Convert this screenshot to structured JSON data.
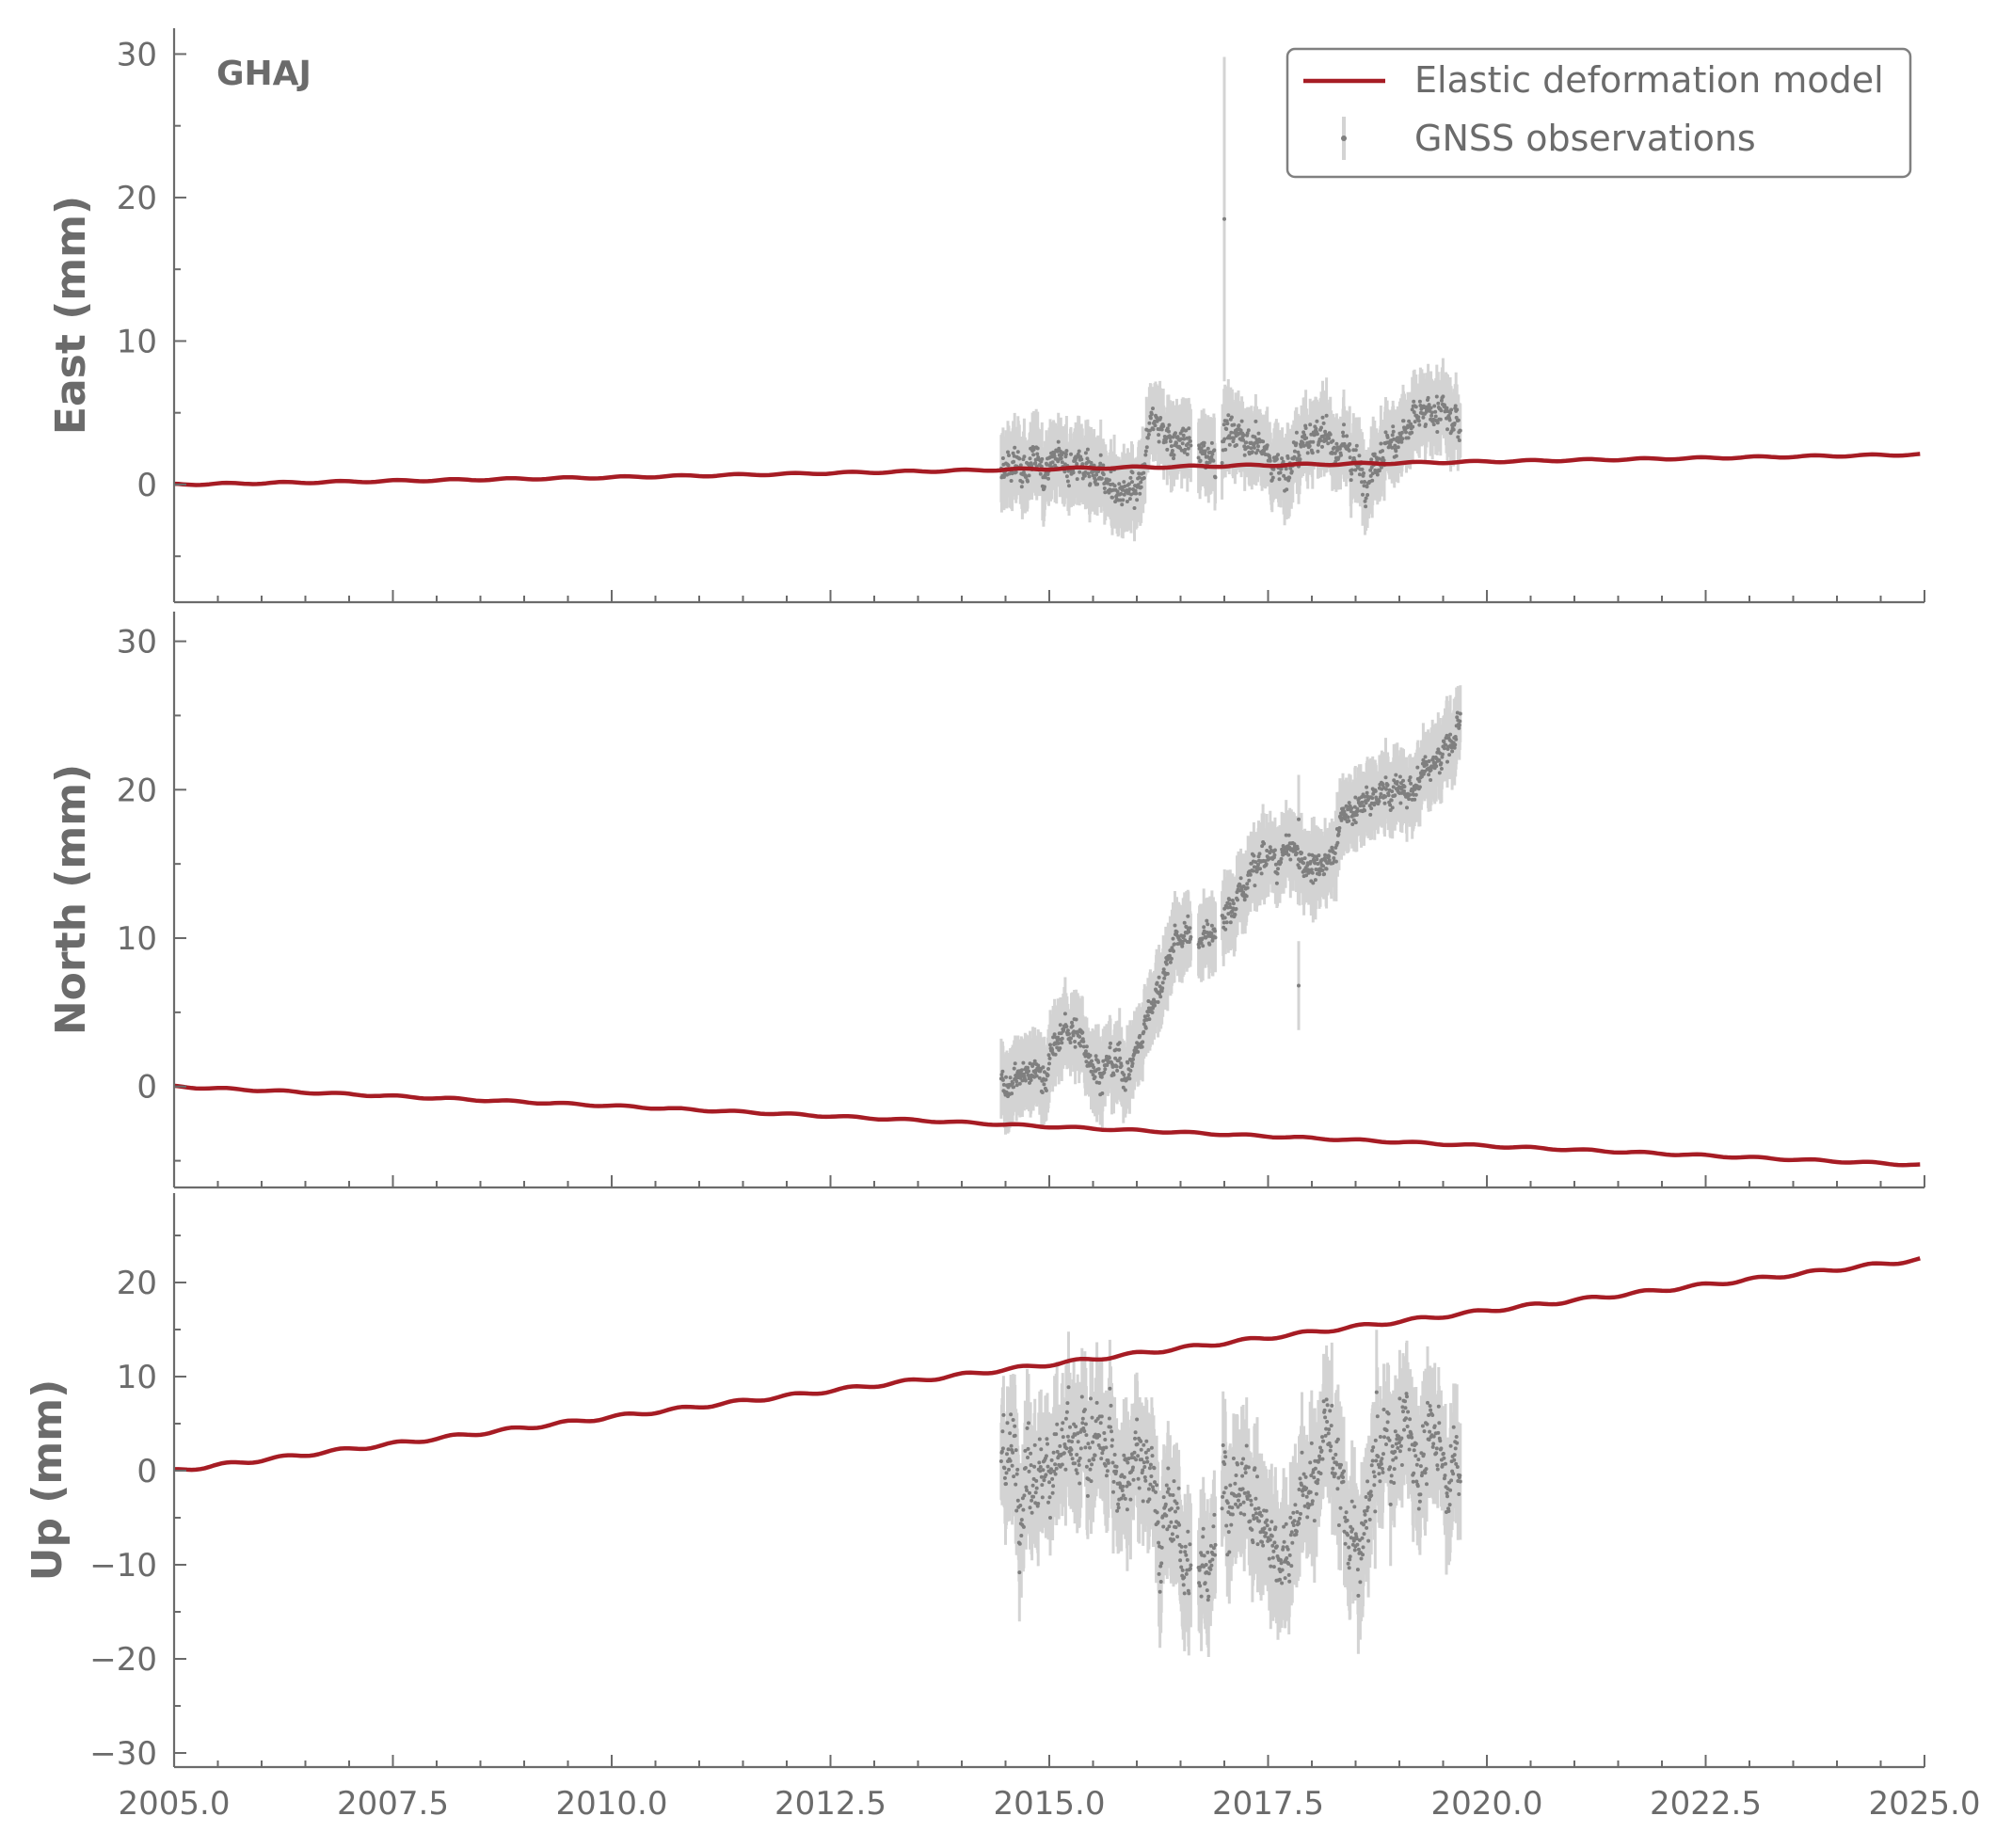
{
  "chart_data": {
    "type": "line",
    "station": "GHAJ",
    "xlim": [
      2005.0,
      2025.0
    ],
    "x_ticks": [
      "2005.0",
      "2007.5",
      "2010.0",
      "2012.5",
      "2015.0",
      "2017.5",
      "2020.0",
      "2022.5",
      "2025.0"
    ],
    "x_tick_values": [
      2005.0,
      2007.5,
      2010.0,
      2012.5,
      2015.0,
      2017.5,
      2020.0,
      2022.5,
      2025.0
    ],
    "legend": {
      "placement": "top-right",
      "model_label": "Elastic deformation model",
      "obs_label": "GNSS observations"
    },
    "colors": {
      "model": "#a61c24",
      "obs_point": "#7f7f7f",
      "obs_error": "#d3d3d3",
      "axis": "#6b6b6b"
    },
    "observation_span": [
      2014.45,
      2019.7
    ],
    "panels": [
      {
        "ylabel": "East (mm)",
        "ylim": [
          -8.2,
          31.8
        ],
        "y_ticks": [
          0,
          10,
          20,
          30
        ],
        "y_tick_labels": [
          "0",
          "10",
          "20",
          "30"
        ],
        "model": {
          "x": [
            2005.0,
            2010.0,
            2015.0,
            2020.0,
            2025.0
          ],
          "y": [
            0.0,
            0.5,
            1.1,
            1.6,
            2.1
          ]
        },
        "obs_trend": {
          "x": [
            2014.45,
            2014.8,
            2015.2,
            2015.6,
            2016.0,
            2016.2,
            2016.5,
            2016.8,
            2017.0,
            2017.4,
            2017.7,
            2018.0,
            2018.3,
            2018.6,
            2018.9,
            2019.2,
            2019.5,
            2019.7
          ],
          "y": [
            0.5,
            1.5,
            2.0,
            1.0,
            -1.5,
            4.5,
            3.0,
            2.0,
            4.0,
            2.5,
            1.0,
            4.0,
            2.5,
            1.0,
            3.0,
            4.5,
            5.0,
            4.0
          ]
        },
        "noise": 1.2,
        "error": 2.0,
        "outliers": [
          {
            "x": 2017.0,
            "y": 18.5,
            "err": 11.3
          }
        ]
      },
      {
        "ylabel": "North (mm)",
        "ylim": [
          -6.8,
          32.0
        ],
        "y_ticks": [
          0,
          10,
          20,
          30
        ],
        "y_tick_labels": [
          "0",
          "10",
          "20",
          "30"
        ],
        "model": {
          "x": [
            2005.0,
            2010.0,
            2015.0,
            2020.0,
            2025.0
          ],
          "y": [
            0.0,
            -1.3,
            -2.7,
            -4.0,
            -5.3
          ]
        },
        "obs_trend": {
          "x": [
            2014.45,
            2014.9,
            2015.2,
            2015.5,
            2015.9,
            2016.2,
            2016.5,
            2016.8,
            2017.0,
            2017.4,
            2017.8,
            2018.1,
            2018.4,
            2018.8,
            2019.1,
            2019.4,
            2019.7
          ],
          "y": [
            0.5,
            1.0,
            4.0,
            2.0,
            1.0,
            6.0,
            10.5,
            10.0,
            11.0,
            15.0,
            15.5,
            14.5,
            18.5,
            19.5,
            20.0,
            22.0,
            24.0
          ]
        },
        "noise": 1.0,
        "error": 2.0,
        "outliers": [
          {
            "x": 2017.85,
            "y": 6.8,
            "err": 3.0
          },
          {
            "x": 2017.85,
            "y": 18.0,
            "err": 3.0
          }
        ]
      },
      {
        "ylabel": "Up (mm)",
        "ylim": [
          -31.5,
          29.5
        ],
        "y_ticks": [
          -30,
          -20,
          -10,
          0,
          10,
          20
        ],
        "y_tick_labels": [
          "−30",
          "−20",
          "−10",
          "0",
          "10",
          "20"
        ],
        "model": {
          "x": [
            2005.0,
            2010.0,
            2015.0,
            2020.0,
            2025.0
          ],
          "y": [
            0.0,
            5.7,
            11.3,
            17.0,
            22.5
          ]
        },
        "obs_trend": {
          "x": [
            2014.45,
            2015.0,
            2015.5,
            2016.0,
            2016.4,
            2016.7,
            2017.0,
            2017.3,
            2017.6,
            2017.9,
            2018.2,
            2018.5,
            2018.8,
            2019.1,
            2019.4,
            2019.7
          ],
          "y": [
            2.0,
            0.0,
            2.0,
            0.0,
            -5.0,
            -14.0,
            0.0,
            -4.0,
            -8.0,
            -3.0,
            5.0,
            -10.0,
            1.0,
            3.0,
            2.0,
            0.0
          ]
        },
        "noise": 4.5,
        "error": 5.0,
        "outliers": []
      }
    ]
  }
}
